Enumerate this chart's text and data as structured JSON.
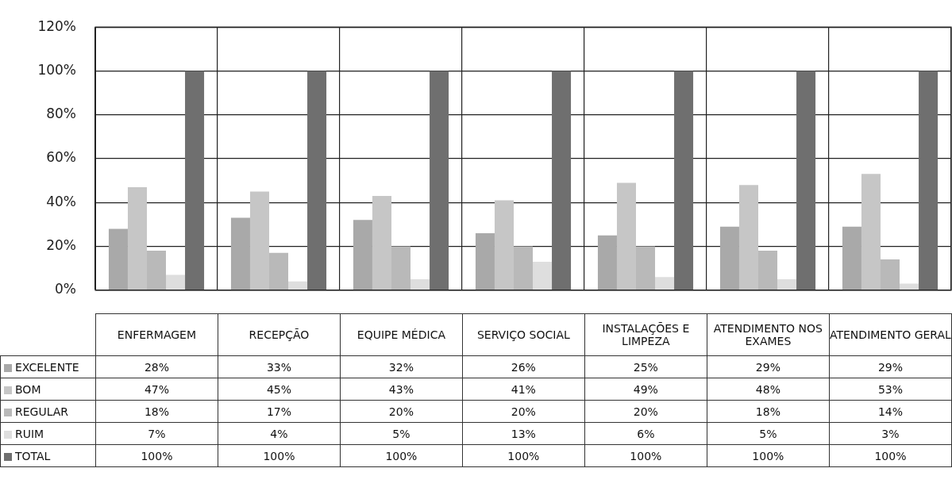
{
  "chart_data": {
    "type": "bar",
    "categories": [
      "ENFERMAGEM",
      "RECEPÇÃO",
      "EQUIPE MÉDICA",
      "SERVIÇO SOCIAL",
      "INSTALAÇÕES E LIMPEZA",
      "ATENDIMENTO NOS EXAMES",
      "ATENDIMENTO GERAL"
    ],
    "series": [
      {
        "name": "EXCELENTE",
        "color": "#a9a9a9",
        "values": [
          28,
          33,
          32,
          26,
          25,
          29,
          29
        ],
        "value_labels": [
          "28%",
          "33%",
          "32%",
          "26%",
          "25%",
          "29%",
          "29%"
        ]
      },
      {
        "name": "BOM",
        "color": "#c6c6c6",
        "values": [
          47,
          45,
          43,
          41,
          49,
          48,
          53
        ],
        "value_labels": [
          "47%",
          "45%",
          "43%",
          "41%",
          "49%",
          "48%",
          "53%"
        ]
      },
      {
        "name": "REGULAR",
        "color": "#b9b9b9",
        "values": [
          18,
          17,
          20,
          20,
          20,
          18,
          14
        ],
        "value_labels": [
          "18%",
          "17%",
          "20%",
          "20%",
          "20%",
          "18%",
          "14%"
        ]
      },
      {
        "name": "RUIM",
        "color": "#dedede",
        "values": [
          7,
          4,
          5,
          13,
          6,
          5,
          3
        ],
        "value_labels": [
          "7%",
          "4%",
          "5%",
          "13%",
          "6%",
          "5%",
          "3%"
        ]
      },
      {
        "name": "TOTAL",
        "color": "#6f6f6f",
        "values": [
          100,
          100,
          100,
          100,
          100,
          100,
          100
        ],
        "value_labels": [
          "100%",
          "100%",
          "100%",
          "100%",
          "100%",
          "100%",
          "100%"
        ]
      }
    ],
    "ylim": [
      0,
      120
    ],
    "yticks": [
      {
        "value": 0,
        "label": "0%"
      },
      {
        "value": 20,
        "label": "20%"
      },
      {
        "value": 40,
        "label": "40%"
      },
      {
        "value": 60,
        "label": "60%"
      },
      {
        "value": 80,
        "label": "80%"
      },
      {
        "value": 100,
        "label": "100%"
      },
      {
        "value": 120,
        "label": "120%"
      }
    ],
    "grid": true,
    "legend": "bottom"
  }
}
